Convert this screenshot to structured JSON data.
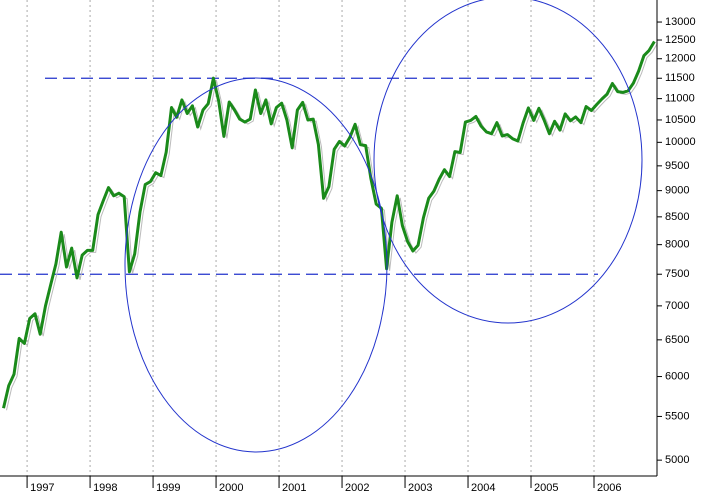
{
  "chart_data": {
    "type": "line",
    "log_scale": true,
    "grid": true,
    "color": "#1a8a1a",
    "xlim": [
      1996.57,
      2007.0
    ],
    "xticks": [
      1997,
      1998,
      1999,
      2000,
      2001,
      2002,
      2003,
      2004,
      2005,
      2006
    ],
    "ylim": [
      4830,
      13640
    ],
    "yticks": [
      5000,
      5500,
      6000,
      6500,
      7000,
      7500,
      8000,
      8500,
      9000,
      9500,
      10000,
      10500,
      11000,
      11500,
      12000,
      12500,
      13000
    ],
    "hlines": [
      11500,
      7500
    ],
    "hline_color": "#2233cc",
    "x": [
      1996.625,
      1996.708,
      1996.792,
      1996.875,
      1996.958,
      1997.042,
      1997.125,
      1997.208,
      1997.292,
      1997.375,
      1997.458,
      1997.542,
      1997.625,
      1997.708,
      1997.792,
      1997.875,
      1997.958,
      1998.042,
      1998.125,
      1998.208,
      1998.292,
      1998.375,
      1998.458,
      1998.542,
      1998.625,
      1998.708,
      1998.792,
      1998.875,
      1998.958,
      1999.042,
      1999.125,
      1999.208,
      1999.292,
      1999.375,
      1999.458,
      1999.542,
      1999.625,
      1999.708,
      1999.792,
      1999.875,
      1999.958,
      2000.042,
      2000.125,
      2000.208,
      2000.292,
      2000.375,
      2000.458,
      2000.542,
      2000.625,
      2000.708,
      2000.792,
      2000.875,
      2000.958,
      2001.042,
      2001.125,
      2001.208,
      2001.292,
      2001.375,
      2001.458,
      2001.542,
      2001.625,
      2001.708,
      2001.792,
      2001.875,
      2001.958,
      2002.042,
      2002.125,
      2002.208,
      2002.292,
      2002.375,
      2002.458,
      2002.542,
      2002.625,
      2002.708,
      2002.792,
      2002.875,
      2002.958,
      2003.042,
      2003.125,
      2003.208,
      2003.292,
      2003.375,
      2003.458,
      2003.542,
      2003.625,
      2003.708,
      2003.792,
      2003.875,
      2003.958,
      2004.042,
      2004.125,
      2004.208,
      2004.292,
      2004.375,
      2004.458,
      2004.542,
      2004.625,
      2004.708,
      2004.792,
      2004.875,
      2004.958,
      2005.042,
      2005.125,
      2005.208,
      2005.292,
      2005.375,
      2005.458,
      2005.542,
      2005.625,
      2005.708,
      2005.792,
      2005.875,
      2005.958,
      2006.042,
      2006.125,
      2006.208,
      2006.292,
      2006.375,
      2006.458,
      2006.542,
      2006.625,
      2006.708,
      2006.792,
      2006.875,
      2006.958
    ],
    "values": [
      5600,
      5880,
      6030,
      6520,
      6450,
      6810,
      6880,
      6580,
      7000,
      7330,
      7670,
      8220,
      7620,
      7940,
      7440,
      7820,
      7900,
      7900,
      8540,
      8800,
      9060,
      8900,
      8950,
      8880,
      7540,
      7840,
      8590,
      9120,
      9180,
      9360,
      9300,
      9790,
      10790,
      10560,
      10970,
      10650,
      10830,
      10340,
      10730,
      10880,
      11500,
      10940,
      10130,
      10920,
      10730,
      10520,
      10450,
      10520,
      11210,
      10650,
      10970,
      10410,
      10790,
      10890,
      10500,
      9880,
      10730,
      10910,
      10500,
      10520,
      9950,
      8850,
      9080,
      9850,
      10020,
      9920,
      10110,
      10400,
      9950,
      9930,
      9240,
      8740,
      8660,
      7590,
      8400,
      8900,
      8340,
      8050,
      7890,
      7990,
      8480,
      8850,
      8990,
      9230,
      9420,
      9280,
      9800,
      9780,
      10450,
      10490,
      10580,
      10360,
      10230,
      10190,
      10440,
      10140,
      10170,
      10080,
      10030,
      10430,
      10780,
      10490,
      10770,
      10500,
      10190,
      10470,
      10270,
      10640,
      10480,
      10570,
      10440,
      10810,
      10720,
      10860,
      10990,
      11110,
      11370,
      11170,
      11150,
      11190,
      11380,
      11680,
      12080,
      12220,
      12460
    ]
  }
}
